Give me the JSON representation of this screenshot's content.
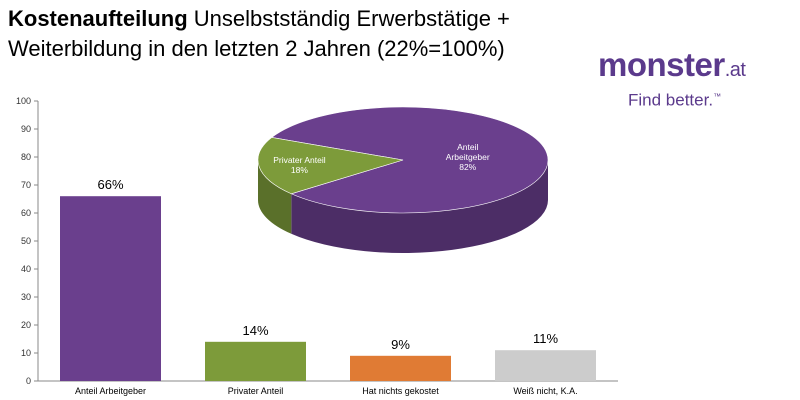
{
  "header": {
    "title_bold": "Kostenaufteilung",
    "title_rest": "Unselbstständig Erwerbstätige + Weiterbildung in den letzten 2 Jahren (22%=100%)"
  },
  "logo": {
    "main": "monster",
    "suffix": ".at",
    "tagline": "Find better.",
    "tm": "™"
  },
  "colors": {
    "purple": "#6a3f8d",
    "green": "#7d9b3a",
    "orange": "#e07b34",
    "gray": "#cccccc"
  },
  "chart_data": [
    {
      "type": "bar",
      "categories": [
        "Anteil Arbeitgeber",
        "Privater Anteil",
        "Hat nichts gekostet",
        "Weiß nicht, K.A."
      ],
      "values": [
        66,
        14,
        9,
        11
      ],
      "labels": [
        "66%",
        "14%",
        "9%",
        "11%"
      ],
      "colors": [
        "#6a3f8d",
        "#7d9b3a",
        "#e07b34",
        "#cccccc"
      ],
      "ylim": [
        0,
        100
      ],
      "yticks": [
        0,
        10,
        20,
        30,
        40,
        50,
        60,
        70,
        80,
        90,
        100
      ],
      "grid": false
    },
    {
      "type": "pie",
      "slices": [
        {
          "label": "Anteil Arbeitgeber",
          "value": 82,
          "text": "82%",
          "color": "#6a3f8d"
        },
        {
          "label": "Privater Anteil",
          "value": 18,
          "text": "18%",
          "color": "#7d9b3a"
        }
      ]
    }
  ]
}
